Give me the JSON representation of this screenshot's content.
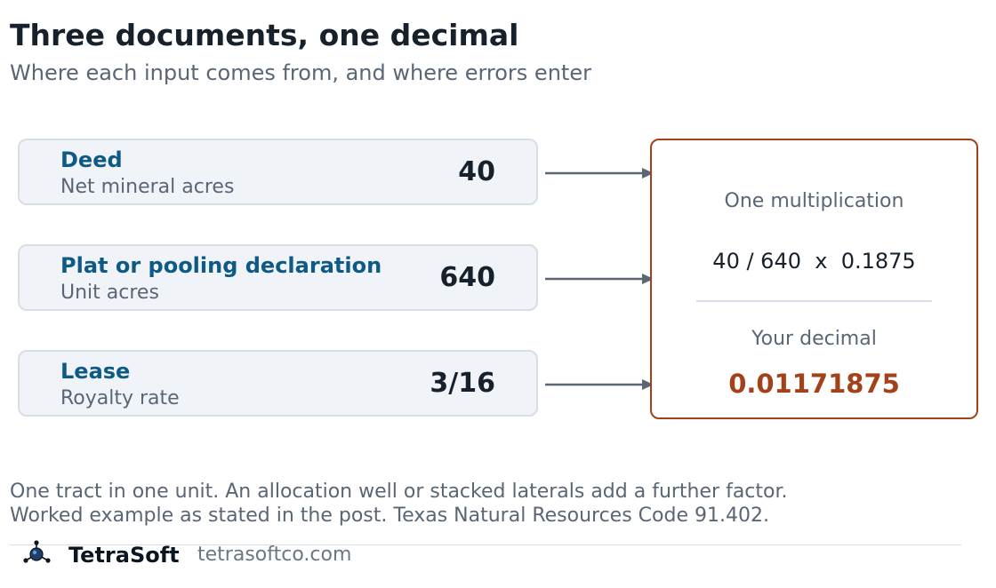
{
  "title": "Three documents, one decimal",
  "subtitle": "Where each input comes from, and where errors enter",
  "inputs": [
    {
      "name": "Deed",
      "description": "Net mineral acres",
      "value": "40"
    },
    {
      "name": "Plat or pooling declaration",
      "description": "Unit acres",
      "value": "640"
    },
    {
      "name": "Lease",
      "description": "Royalty rate",
      "value": "3/16"
    }
  ],
  "result": {
    "heading": "One multiplication",
    "formula": "40 / 640  x  0.1875",
    "decimal_label": "Your decimal",
    "decimal_value": "0.01171875"
  },
  "footnotes": [
    "One tract in one unit. An allocation well or stacked laterals add a further factor.",
    "Worked example as stated in the post. Texas Natural Resources Code 91.402."
  ],
  "footer": {
    "brand": "TetraSoft",
    "url": "tetrasoftco.com"
  },
  "colors": {
    "title": "#17212b",
    "input_name": "#0f5a85",
    "input_bg": "#f0f4f8",
    "result_accent": "#a3421a",
    "muted_text": "#5a6675"
  }
}
